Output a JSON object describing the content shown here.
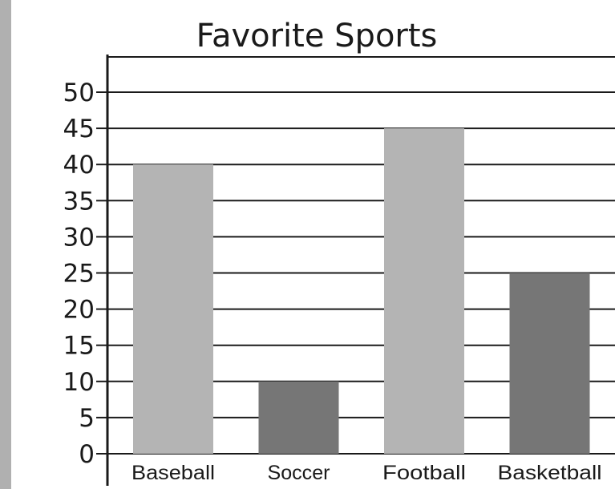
{
  "chart_data": {
    "type": "bar",
    "title": "Favorite Sports",
    "categories": [
      "Baseball",
      "Soccer",
      "Football",
      "Basketball"
    ],
    "values": [
      40,
      10,
      45,
      25
    ],
    "bar_colors": [
      "#b4b4b4",
      "#767676",
      "#b4b4b4",
      "#767676"
    ],
    "yticks": [
      0,
      5,
      10,
      15,
      20,
      25,
      30,
      35,
      40,
      45,
      50
    ],
    "ylim": [
      0,
      50
    ],
    "xlabel": "",
    "ylabel": "",
    "grid": true,
    "legend": "none"
  }
}
